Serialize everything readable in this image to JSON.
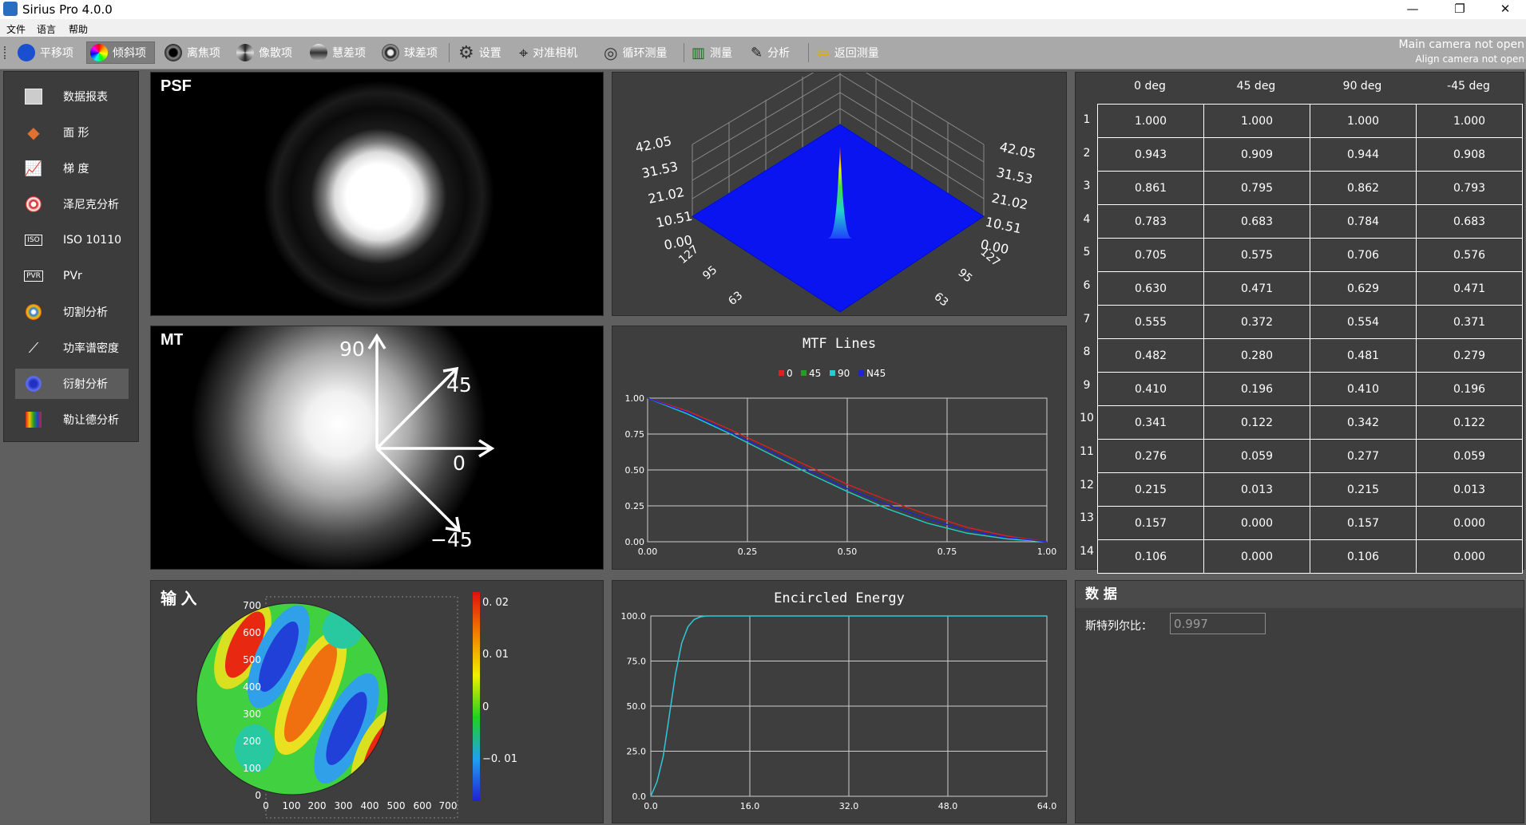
{
  "window": {
    "title": "Sirius Pro 4.0.0",
    "minimize": "—",
    "maximize": "❐",
    "close": "✕"
  },
  "menu": [
    "文件",
    "语言",
    "帮助"
  ],
  "toolbar": {
    "items": [
      {
        "label": "平移项",
        "icon": "blue-circle-icon"
      },
      {
        "label": "倾斜项",
        "icon": "rainbow-circle-icon",
        "active": true
      },
      {
        "label": "离焦项",
        "icon": "defocus-icon"
      },
      {
        "label": "像散项",
        "icon": "astigmatism-icon"
      },
      {
        "label": "慧差项",
        "icon": "coma-icon"
      },
      {
        "label": "球差项",
        "icon": "spherical-icon"
      },
      {
        "label": "设置",
        "icon": "gear-icon"
      },
      {
        "label": "对准相机",
        "icon": "crosshair-icon"
      },
      {
        "label": "循环测量",
        "icon": "cycle-icon"
      },
      {
        "label": "测量",
        "icon": "bar-chart-icon"
      },
      {
        "label": "分析",
        "icon": "edit-icon"
      },
      {
        "label": "返回测量",
        "icon": "back-arrow-icon"
      }
    ],
    "main_camera_status": "Main camera not open",
    "align_camera_status": "Align camera not open"
  },
  "sidebar": {
    "items": [
      {
        "label": "数据报表",
        "icon": "report-icon"
      },
      {
        "label": "面 形",
        "icon": "surface-icon"
      },
      {
        "label": "梯 度",
        "icon": "gradient-icon"
      },
      {
        "label": "泽尼克分析",
        "icon": "zernike-icon"
      },
      {
        "label": "ISO 10110",
        "icon": "iso-icon",
        "badge": "ISO"
      },
      {
        "label": "PVr",
        "icon": "pvr-icon",
        "badge": "PVR"
      },
      {
        "label": "切割分析",
        "icon": "cut-icon"
      },
      {
        "label": "功率谱密度",
        "icon": "psd-icon"
      },
      {
        "label": "衍射分析",
        "icon": "diffraction-icon",
        "active": true
      },
      {
        "label": "勒让德分析",
        "icon": "legendre-icon"
      }
    ]
  },
  "psf": {
    "label": "PSF"
  },
  "psf3d": {
    "zticks": [
      "42.05",
      "31.53",
      "21.02",
      "10.51",
      "0.00"
    ],
    "left_ticks": [
      "127",
      "95",
      "63"
    ],
    "right_ticks": [
      "127",
      "95",
      "63"
    ]
  },
  "mtf": {
    "label": "MTF",
    "angles": [
      "90",
      "45",
      "0",
      "−45"
    ]
  },
  "mtf_chart": {
    "type": "line",
    "title": "MTF Lines",
    "series": [
      {
        "name": "0",
        "color": "#e02020"
      },
      {
        "name": "45",
        "color": "#20a020"
      },
      {
        "name": "90",
        "color": "#20d0d0"
      },
      {
        "name": "N45",
        "color": "#2020e0"
      }
    ],
    "xticks": [
      "0.00",
      "0.25",
      "0.50",
      "0.75",
      "1.00"
    ],
    "yticks": [
      "1.00",
      "0.75",
      "0.50",
      "0.25",
      "0.00"
    ]
  },
  "input": {
    "label": "输 入",
    "xticks": [
      "0",
      "100",
      "200",
      "300",
      "400",
      "500",
      "600",
      "700"
    ],
    "yticks": [
      "700",
      "600",
      "500",
      "400",
      "300",
      "200",
      "100",
      "0"
    ],
    "colorbar": [
      "0. 02",
      "0. 01",
      "0",
      "−0. 01"
    ]
  },
  "ee_chart": {
    "type": "line",
    "title": "Encircled Energy",
    "xticks": [
      "0.0",
      "16.0",
      "32.0",
      "48.0",
      "64.0"
    ],
    "yticks": [
      "100.0",
      "75.0",
      "50.0",
      "25.0",
      "0.0"
    ]
  },
  "chart_data": [
    {
      "type": "line",
      "title": "MTF Lines",
      "x": [
        0,
        0.1,
        0.2,
        0.3,
        0.4,
        0.5,
        0.6,
        0.7,
        0.8,
        0.9,
        1.0
      ],
      "series": [
        {
          "name": "0",
          "values": [
            1.0,
            0.91,
            0.79,
            0.66,
            0.53,
            0.4,
            0.29,
            0.19,
            0.1,
            0.04,
            0.0
          ]
        },
        {
          "name": "45",
          "values": [
            1.0,
            0.89,
            0.76,
            0.62,
            0.48,
            0.35,
            0.23,
            0.13,
            0.06,
            0.02,
            0.0
          ]
        },
        {
          "name": "90",
          "values": [
            1.0,
            0.89,
            0.76,
            0.62,
            0.48,
            0.35,
            0.23,
            0.13,
            0.06,
            0.02,
            0.0
          ]
        },
        {
          "name": "N45",
          "values": [
            1.0,
            0.9,
            0.77,
            0.64,
            0.5,
            0.37,
            0.26,
            0.16,
            0.08,
            0.03,
            0.0
          ]
        }
      ],
      "xlim": [
        0,
        1
      ],
      "ylim": [
        0,
        1
      ],
      "grid": true,
      "legend": "top"
    },
    {
      "type": "line",
      "title": "Encircled Energy",
      "x": [
        0,
        1,
        2,
        3,
        4,
        5,
        6,
        7,
        8,
        9,
        10,
        12,
        16,
        32,
        48,
        64
      ],
      "values": [
        0,
        8,
        22,
        45,
        68,
        85,
        94,
        98,
        99.5,
        100,
        100,
        100,
        100,
        100,
        100,
        100
      ],
      "xlim": [
        0,
        64
      ],
      "ylim": [
        0,
        100
      ],
      "grid": true
    }
  ],
  "table": {
    "columns": [
      "0 deg",
      "45 deg",
      "90 deg",
      "-45 deg"
    ],
    "rows": [
      [
        "1",
        "1.000",
        "1.000",
        "1.000",
        "1.000"
      ],
      [
        "2",
        "0.943",
        "0.909",
        "0.944",
        "0.908"
      ],
      [
        "3",
        "0.861",
        "0.795",
        "0.862",
        "0.793"
      ],
      [
        "4",
        "0.783",
        "0.683",
        "0.784",
        "0.683"
      ],
      [
        "5",
        "0.705",
        "0.575",
        "0.706",
        "0.576"
      ],
      [
        "6",
        "0.630",
        "0.471",
        "0.629",
        "0.471"
      ],
      [
        "7",
        "0.555",
        "0.372",
        "0.554",
        "0.371"
      ],
      [
        "8",
        "0.482",
        "0.280",
        "0.481",
        "0.279"
      ],
      [
        "9",
        "0.410",
        "0.196",
        "0.410",
        "0.196"
      ],
      [
        "10",
        "0.341",
        "0.122",
        "0.342",
        "0.122"
      ],
      [
        "11",
        "0.276",
        "0.059",
        "0.277",
        "0.059"
      ],
      [
        "12",
        "0.215",
        "0.013",
        "0.215",
        "0.013"
      ],
      [
        "13",
        "0.157",
        "0.000",
        "0.157",
        "0.000"
      ],
      [
        "14",
        "0.106",
        "0.000",
        "0.106",
        "0.000"
      ]
    ]
  },
  "data_panel": {
    "title": "数 据",
    "strehl_label": "斯特列尔比：",
    "strehl_value": "0.997"
  }
}
